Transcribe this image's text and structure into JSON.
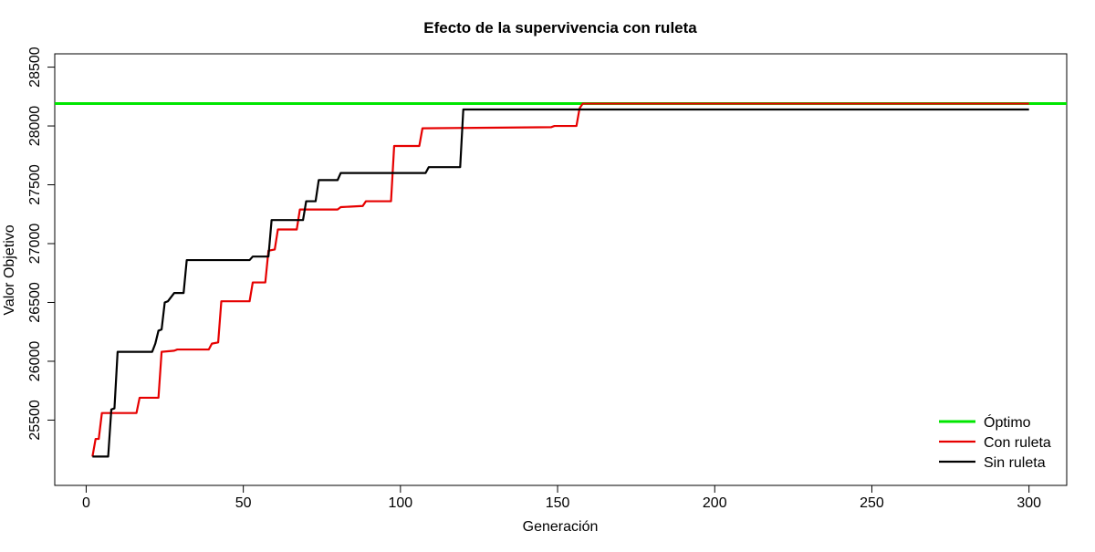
{
  "chart_data": {
    "type": "line",
    "title": "Efecto de la supervivencia con ruleta",
    "xlabel": "Generación",
    "ylabel": "Valor Objetivo",
    "xlim": [
      -10,
      312
    ],
    "ylim": [
      24945,
      28613
    ],
    "xticks": [
      0,
      50,
      100,
      150,
      200,
      250,
      300
    ],
    "yticks": [
      25500,
      26000,
      26500,
      27000,
      27500,
      28000,
      28500
    ],
    "legend_position": "bottom-right",
    "hline": {
      "name": "Óptimo",
      "y": 28190,
      "color": "#00e600"
    },
    "series": [
      {
        "name": "Con ruleta",
        "color": "#e60000",
        "points": [
          [
            2,
            25190
          ],
          [
            3,
            25340
          ],
          [
            4,
            25340
          ],
          [
            5,
            25560
          ],
          [
            16,
            25560
          ],
          [
            17,
            25690
          ],
          [
            23,
            25690
          ],
          [
            24,
            26080
          ],
          [
            28,
            26090
          ],
          [
            29,
            26100
          ],
          [
            39,
            26100
          ],
          [
            40,
            26150
          ],
          [
            42,
            26160
          ],
          [
            43,
            26510
          ],
          [
            52,
            26510
          ],
          [
            53,
            26670
          ],
          [
            57,
            26670
          ],
          [
            58,
            26940
          ],
          [
            60,
            26950
          ],
          [
            61,
            27120
          ],
          [
            67,
            27120
          ],
          [
            68,
            27290
          ],
          [
            80,
            27290
          ],
          [
            81,
            27310
          ],
          [
            88,
            27320
          ],
          [
            89,
            27360
          ],
          [
            97,
            27360
          ],
          [
            98,
            27830
          ],
          [
            106,
            27830
          ],
          [
            107,
            27980
          ],
          [
            148,
            27990
          ],
          [
            149,
            28000
          ],
          [
            156,
            28000
          ],
          [
            157,
            28150
          ],
          [
            158,
            28190
          ],
          [
            300,
            28190
          ]
        ]
      },
      {
        "name": "Sin ruleta",
        "color": "#000000",
        "points": [
          [
            2,
            25190
          ],
          [
            7,
            25190
          ],
          [
            8,
            25590
          ],
          [
            9,
            25600
          ],
          [
            10,
            26080
          ],
          [
            21,
            26080
          ],
          [
            22,
            26150
          ],
          [
            23,
            26260
          ],
          [
            24,
            26270
          ],
          [
            25,
            26500
          ],
          [
            26,
            26510
          ],
          [
            28,
            26580
          ],
          [
            31,
            26580
          ],
          [
            32,
            26860
          ],
          [
            52,
            26860
          ],
          [
            53,
            26890
          ],
          [
            58,
            26890
          ],
          [
            59,
            27200
          ],
          [
            69,
            27200
          ],
          [
            70,
            27360
          ],
          [
            73,
            27360
          ],
          [
            74,
            27540
          ],
          [
            80,
            27540
          ],
          [
            81,
            27600
          ],
          [
            108,
            27600
          ],
          [
            109,
            27650
          ],
          [
            119,
            27650
          ],
          [
            120,
            28140
          ],
          [
            300,
            28140
          ]
        ]
      }
    ]
  }
}
